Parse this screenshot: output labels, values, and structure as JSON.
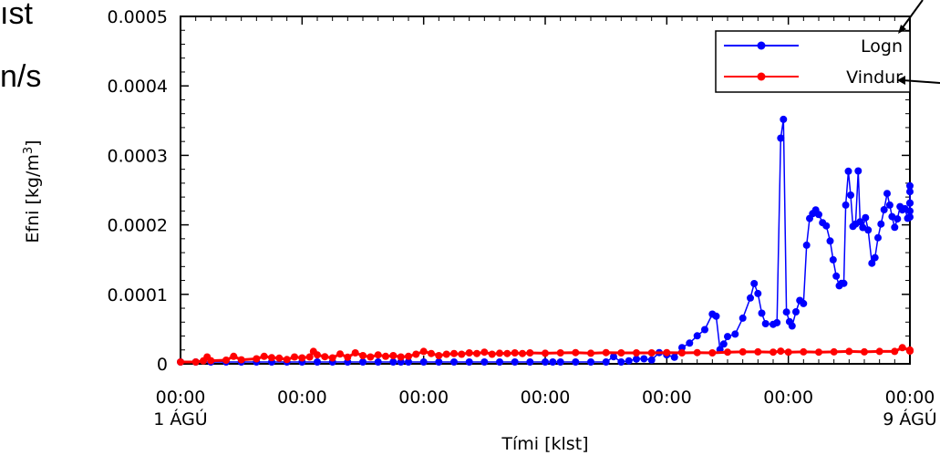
{
  "fragments": {
    "top_left": "ıst",
    "left_mid": "n/s"
  },
  "chart_data": {
    "type": "line",
    "xlabel": "Tími [klst]",
    "ylabel": "Efni [kg/m",
    "ylabel_sup": "3",
    "ylabel_close": "]",
    "ylim": [
      0,
      0.0005
    ],
    "xlim": [
      0,
      192
    ],
    "x_ticks": [
      0,
      32,
      64,
      96,
      128,
      160,
      192
    ],
    "x_tick_labels": [
      "00:00",
      "00:00",
      "00:00",
      "00:00",
      "00:00",
      "00:00",
      "00:00"
    ],
    "x_date_labels": [
      {
        "x": 0,
        "label": "1  ÁGÚ"
      },
      {
        "x": 192,
        "label": "9 ÁGÚ"
      }
    ],
    "y_ticks": [
      0,
      0.0001,
      0.0002,
      0.0003,
      0.0004,
      0.0005
    ],
    "y_tick_labels": [
      "0",
      "0.0001",
      "0.0002",
      "0.0003",
      "0.0004",
      "0.0005"
    ],
    "grid": false,
    "legend_position": "top-right",
    "series": [
      {
        "name": "Logn",
        "color": "#0000ff",
        "points": [
          [
            0,
            2e-07
          ],
          [
            4,
            2e-07
          ],
          [
            8,
            3e-07
          ],
          [
            12,
            2e-07
          ],
          [
            16,
            4e-07
          ],
          [
            20,
            2e-07
          ],
          [
            24,
            3e-07
          ],
          [
            28,
            2e-07
          ],
          [
            32,
            4e-07
          ],
          [
            36,
            3e-07
          ],
          [
            40,
            2e-07
          ],
          [
            44,
            3e-07
          ],
          [
            48,
            2e-07
          ],
          [
            52,
            4e-07
          ],
          [
            56,
            3e-07
          ],
          [
            58,
            2.1e-06
          ],
          [
            60,
            4e-07
          ],
          [
            64,
            3e-07
          ],
          [
            68,
            2e-07
          ],
          [
            72,
            3e-07
          ],
          [
            76,
            4e-07
          ],
          [
            80,
            3e-07
          ],
          [
            84,
            2e-07
          ],
          [
            88,
            3e-07
          ],
          [
            92,
            4e-07
          ],
          [
            96,
            3e-07
          ],
          [
            98,
            2.2e-06
          ],
          [
            100,
            4e-07
          ],
          [
            104,
            3e-07
          ],
          [
            108,
            5e-07
          ],
          [
            112,
            4e-07
          ],
          [
            114,
            1.02e-05
          ],
          [
            116,
            4e-07
          ],
          [
            118,
            4.3e-06
          ],
          [
            120,
            6.8e-06
          ],
          [
            122,
            7.2e-06
          ],
          [
            124,
            5.5e-06
          ],
          [
            126,
            1.62e-05
          ],
          [
            128,
            1.28e-05
          ],
          [
            130,
            9.5e-06
          ],
          [
            132,
            2.34e-05
          ],
          [
            134,
            2.98e-05
          ],
          [
            136,
            4.03e-05
          ],
          [
            138,
            4.92e-05
          ],
          [
            140,
            7.15e-05
          ],
          [
            141,
            6.85e-05
          ],
          [
            142,
            2.05e-05
          ],
          [
            143,
            2.85e-05
          ],
          [
            144,
            3.92e-05
          ],
          [
            146,
            4.28e-05
          ],
          [
            148,
            6.58e-05
          ],
          [
            150,
            9.48e-05
          ],
          [
            151,
            0.0001155
          ],
          [
            152,
            0.0001012
          ],
          [
            153,
            7.28e-05
          ],
          [
            154,
            5.78e-05
          ],
          [
            156,
            5.68e-05
          ],
          [
            157,
            5.92e-05
          ],
          [
            158,
            0.0003248
          ],
          [
            158.7,
            0.0003518
          ],
          [
            159.5,
            7.45e-05
          ],
          [
            160.3,
            6.08e-05
          ],
          [
            161,
            5.45e-05
          ],
          [
            162,
            7.48e-05
          ],
          [
            163,
            9.12e-05
          ],
          [
            164,
            8.68e-05
          ],
          [
            164.8,
            0.0001708
          ],
          [
            165.6,
            0.0002092
          ],
          [
            166.4,
            0.0002162
          ],
          [
            167.2,
            0.0002215
          ],
          [
            168,
            0.0002148
          ],
          [
            169,
            0.0002032
          ],
          [
            170,
            0.0001985
          ],
          [
            171,
            0.0001768
          ],
          [
            171.8,
            0.0001498
          ],
          [
            172.6,
            0.0001262
          ],
          [
            173.4,
            0.0001123
          ],
          [
            174,
            0.0001158
          ],
          [
            174.6,
            0.0001158
          ],
          [
            175.1,
            0.0002285
          ],
          [
            175.8,
            0.0002772
          ],
          [
            176.4,
            0.0002428
          ],
          [
            177,
            0.0001978
          ],
          [
            177.7,
            0.0002012
          ],
          [
            178.4,
            0.0002775
          ],
          [
            178.9,
            0.0002045
          ],
          [
            179.6,
            0.0001962
          ],
          [
            180.3,
            0.0002104
          ],
          [
            181,
            0.0001925
          ],
          [
            182,
            0.0001448
          ],
          [
            182.8,
            0.0001528
          ],
          [
            183.6,
            0.0001815
          ],
          [
            184.4,
            0.0002012
          ],
          [
            185.2,
            0.0002218
          ],
          [
            186,
            0.0002452
          ],
          [
            186.7,
            0.0002285
          ],
          [
            187.3,
            0.0002118
          ],
          [
            188,
            0.0001965
          ],
          [
            188.7,
            0.0002085
          ],
          [
            189.4,
            0.0002262
          ],
          [
            190,
            0.0002215
          ],
          [
            190.7,
            0.0002232
          ],
          [
            191.4,
            0.0002095
          ],
          [
            192,
            0.0002112
          ],
          [
            192.7,
            0.0002198
          ],
          [
            193.4,
            0.0002315
          ],
          [
            193.9,
            0.0002562
          ],
          [
            194.4,
            0.0002478
          ],
          [
            195,
            0.0002312
          ]
        ]
      },
      {
        "name": "Vindur",
        "color": "#ff0000",
        "points": [
          [
            0,
            1.5e-06
          ],
          [
            4,
            2.2e-06
          ],
          [
            6,
            4.2e-06
          ],
          [
            7,
            9.8e-06
          ],
          [
            8,
            4.5e-06
          ],
          [
            12,
            5.2e-06
          ],
          [
            14,
            1.08e-05
          ],
          [
            16,
            5.8e-06
          ],
          [
            20,
            7.2e-06
          ],
          [
            22,
            1.08e-05
          ],
          [
            24,
            8.8e-06
          ],
          [
            26,
            8.2e-06
          ],
          [
            28,
            6.2e-06
          ],
          [
            30,
            9.8e-06
          ],
          [
            32,
            8.5e-06
          ],
          [
            34,
            9.8e-06
          ],
          [
            35,
            1.78e-05
          ],
          [
            36,
            1.28e-05
          ],
          [
            38,
            1.02e-05
          ],
          [
            40,
            8.5e-06
          ],
          [
            42,
            1.42e-05
          ],
          [
            44,
            9.5e-06
          ],
          [
            46,
            1.58e-05
          ],
          [
            48,
            1.18e-05
          ],
          [
            50,
            9.8e-06
          ],
          [
            52,
            1.28e-05
          ],
          [
            54,
            1.08e-05
          ],
          [
            56,
            1.18e-05
          ],
          [
            58,
            9.8e-06
          ],
          [
            60,
            1.08e-05
          ],
          [
            62,
            1.38e-05
          ],
          [
            64,
            1.78e-05
          ],
          [
            66,
            1.48e-05
          ],
          [
            68,
            1.18e-05
          ],
          [
            70,
            1.38e-05
          ],
          [
            72,
            1.48e-05
          ],
          [
            74,
            1.38e-05
          ],
          [
            76,
            1.58e-05
          ],
          [
            78,
            1.48e-05
          ],
          [
            80,
            1.68e-05
          ],
          [
            82,
            1.38e-05
          ],
          [
            84,
            1.52e-05
          ],
          [
            86,
            1.48e-05
          ],
          [
            88,
            1.58e-05
          ],
          [
            90,
            1.48e-05
          ],
          [
            92,
            1.58e-05
          ],
          [
            96,
            1.52e-05
          ],
          [
            100,
            1.58e-05
          ],
          [
            104,
            1.62e-05
          ],
          [
            108,
            1.52e-05
          ],
          [
            112,
            1.62e-05
          ],
          [
            116,
            1.58e-05
          ],
          [
            120,
            1.58e-05
          ],
          [
            124,
            1.58e-05
          ],
          [
            128,
            1.62e-05
          ],
          [
            132,
            1.58e-05
          ],
          [
            136,
            1.62e-05
          ],
          [
            140,
            1.58e-05
          ],
          [
            144,
            1.68e-05
          ],
          [
            148,
            1.72e-05
          ],
          [
            152,
            1.72e-05
          ],
          [
            156,
            1.68e-05
          ],
          [
            158,
            1.82e-05
          ],
          [
            160,
            1.68e-05
          ],
          [
            164,
            1.72e-05
          ],
          [
            168,
            1.68e-05
          ],
          [
            172,
            1.72e-05
          ],
          [
            176,
            1.78e-05
          ],
          [
            180,
            1.72e-05
          ],
          [
            184,
            1.78e-05
          ],
          [
            188,
            1.78e-05
          ],
          [
            190,
            2.32e-05
          ],
          [
            192,
            1.98e-05
          ],
          [
            194,
            1.88e-05
          ],
          [
            195,
            1.82e-05
          ]
        ]
      }
    ]
  }
}
